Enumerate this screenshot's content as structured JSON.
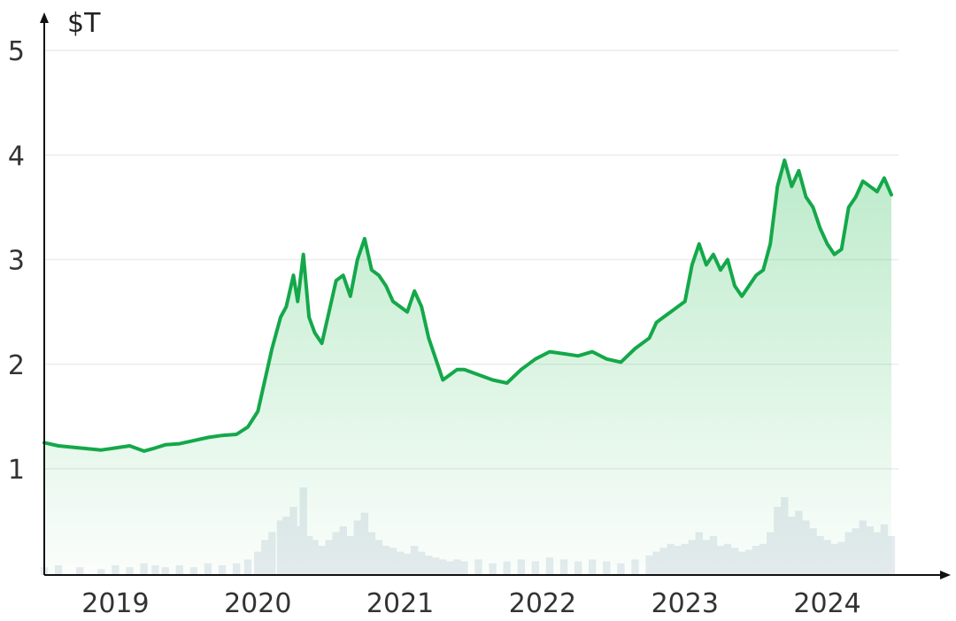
{
  "chart_data": {
    "type": "area",
    "title": "",
    "ylabel": "$T",
    "xlabel": "",
    "ylim": [
      0,
      5
    ],
    "yticks": [
      1,
      2,
      3,
      4,
      5
    ],
    "xlim": [
      2018.5,
      2024.5
    ],
    "xticks": [
      2019,
      2020,
      2021,
      2022,
      2023,
      2024
    ],
    "grid": "horizontal",
    "colors": {
      "line": "#14a84a",
      "fill": "#2fbf5a",
      "volume": "#e6ebf0",
      "axis": "#111111"
    },
    "series": [
      {
        "values_x": [
          2018.5,
          2018.6,
          2018.75,
          2018.9,
          2019.0,
          2019.1,
          2019.2,
          2019.28,
          2019.35,
          2019.45,
          2019.55,
          2019.65,
          2019.75,
          2019.85,
          2019.93,
          2020.0,
          2020.05,
          2020.1,
          2020.16,
          2020.2,
          2020.25,
          2020.28,
          2020.32,
          2020.36,
          2020.4,
          2020.45,
          2020.5,
          2020.55,
          2020.6,
          2020.65,
          2020.7,
          2020.75,
          2020.8,
          2020.85,
          2020.9,
          2020.95,
          2021.0,
          2021.05,
          2021.1,
          2021.15,
          2021.2,
          2021.25,
          2021.3,
          2021.35,
          2021.4,
          2021.45,
          2021.55,
          2021.65,
          2021.75,
          2021.85,
          2021.95,
          2022.05,
          2022.15,
          2022.25,
          2022.35,
          2022.45,
          2022.55,
          2022.65,
          2022.75,
          2022.8,
          2022.85,
          2022.9,
          2022.95,
          2023.0,
          2023.05,
          2023.1,
          2023.15,
          2023.2,
          2023.25,
          2023.3,
          2023.35,
          2023.4,
          2023.45,
          2023.5,
          2023.55,
          2023.6,
          2023.65,
          2023.7,
          2023.75,
          2023.8,
          2023.85,
          2023.9,
          2023.95,
          2024.0,
          2024.05,
          2024.1,
          2024.15,
          2024.2,
          2024.25,
          2024.3,
          2024.35,
          2024.4,
          2024.45
        ],
        "values": [
          1.25,
          1.22,
          1.2,
          1.18,
          1.2,
          1.22,
          1.17,
          1.2,
          1.23,
          1.24,
          1.27,
          1.3,
          1.32,
          1.33,
          1.4,
          1.55,
          1.85,
          2.15,
          2.45,
          2.55,
          2.85,
          2.6,
          3.05,
          2.45,
          2.3,
          2.2,
          2.5,
          2.8,
          2.85,
          2.65,
          3.0,
          3.2,
          2.9,
          2.85,
          2.75,
          2.6,
          2.55,
          2.5,
          2.7,
          2.55,
          2.25,
          2.05,
          1.85,
          1.9,
          1.95,
          1.95,
          1.9,
          1.85,
          1.82,
          1.95,
          2.05,
          2.12,
          2.1,
          2.08,
          2.12,
          2.05,
          2.02,
          2.15,
          2.25,
          2.4,
          2.45,
          2.5,
          2.55,
          2.6,
          2.95,
          3.15,
          2.95,
          3.05,
          2.9,
          3.0,
          2.75,
          2.65,
          2.75,
          2.85,
          2.9,
          3.15,
          3.7,
          3.95,
          3.7,
          3.85,
          3.6,
          3.5,
          3.3,
          3.15,
          3.05,
          3.1,
          3.5,
          3.6,
          3.75,
          3.7,
          3.65,
          3.78,
          3.62
        ]
      }
    ],
    "volume_values": [
      0.04,
      0.05,
      0.04,
      0.03,
      0.05,
      0.04,
      0.06,
      0.05,
      0.04,
      0.05,
      0.04,
      0.06,
      0.05,
      0.06,
      0.08,
      0.12,
      0.18,
      0.22,
      0.28,
      0.3,
      0.35,
      0.25,
      0.45,
      0.2,
      0.18,
      0.15,
      0.18,
      0.22,
      0.25,
      0.2,
      0.28,
      0.32,
      0.22,
      0.18,
      0.15,
      0.14,
      0.12,
      0.11,
      0.15,
      0.12,
      0.1,
      0.09,
      0.08,
      0.07,
      0.08,
      0.07,
      0.08,
      0.06,
      0.07,
      0.08,
      0.07,
      0.09,
      0.08,
      0.07,
      0.08,
      0.07,
      0.06,
      0.08,
      0.1,
      0.12,
      0.14,
      0.16,
      0.15,
      0.16,
      0.18,
      0.22,
      0.18,
      0.2,
      0.15,
      0.16,
      0.14,
      0.12,
      0.13,
      0.15,
      0.16,
      0.22,
      0.35,
      0.4,
      0.3,
      0.33,
      0.28,
      0.24,
      0.2,
      0.18,
      0.16,
      0.17,
      0.22,
      0.24,
      0.28,
      0.25,
      0.22,
      0.26,
      0.2
    ]
  }
}
